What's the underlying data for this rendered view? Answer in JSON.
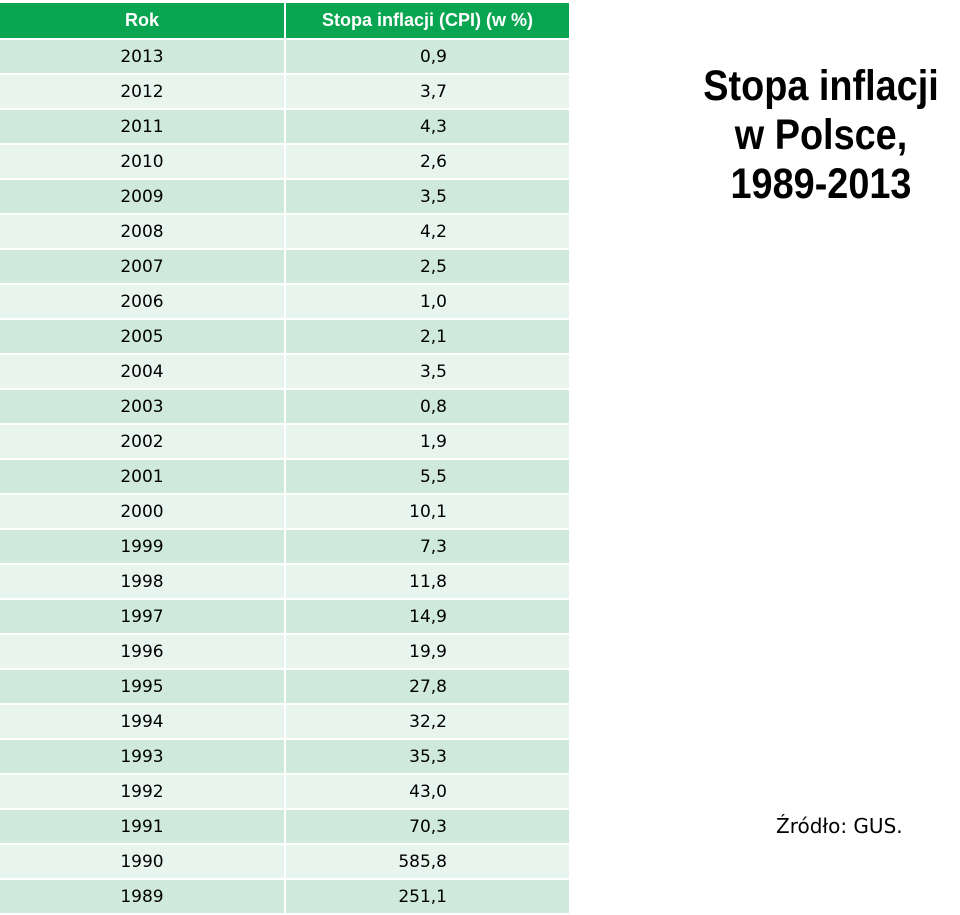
{
  "table": {
    "headers": [
      "Rok",
      "Stopa inflacji (CPI) (w %)"
    ],
    "rows": [
      [
        "2013",
        "0,9"
      ],
      [
        "2012",
        "3,7"
      ],
      [
        "2011",
        "4,3"
      ],
      [
        "2010",
        "2,6"
      ],
      [
        "2009",
        "3,5"
      ],
      [
        "2008",
        "4,2"
      ],
      [
        "2007",
        "2,5"
      ],
      [
        "2006",
        "1,0"
      ],
      [
        "2005",
        "2,1"
      ],
      [
        "2004",
        "3,5"
      ],
      [
        "2003",
        "0,8"
      ],
      [
        "2002",
        "1,9"
      ],
      [
        "2001",
        "5,5"
      ],
      [
        "2000",
        "10,1"
      ],
      [
        "1999",
        "7,3"
      ],
      [
        "1998",
        "11,8"
      ],
      [
        "1997",
        "14,9"
      ],
      [
        "1996",
        "19,9"
      ],
      [
        "1995",
        "27,8"
      ],
      [
        "1994",
        "32,2"
      ],
      [
        "1993",
        "35,3"
      ],
      [
        "1992",
        "43,0"
      ],
      [
        "1991",
        "70,3"
      ],
      [
        "1990",
        "585,8"
      ],
      [
        "1989",
        "251,1"
      ]
    ]
  },
  "title": {
    "line1": "Stopa inflacji",
    "line2": "w Polsce,",
    "line3": "1989-2013"
  },
  "source": "Źródło: GUS.",
  "colors": {
    "header_bg": "#0aa550",
    "row_dark": "#cfeadc",
    "row_light": "#e8f5ee"
  }
}
